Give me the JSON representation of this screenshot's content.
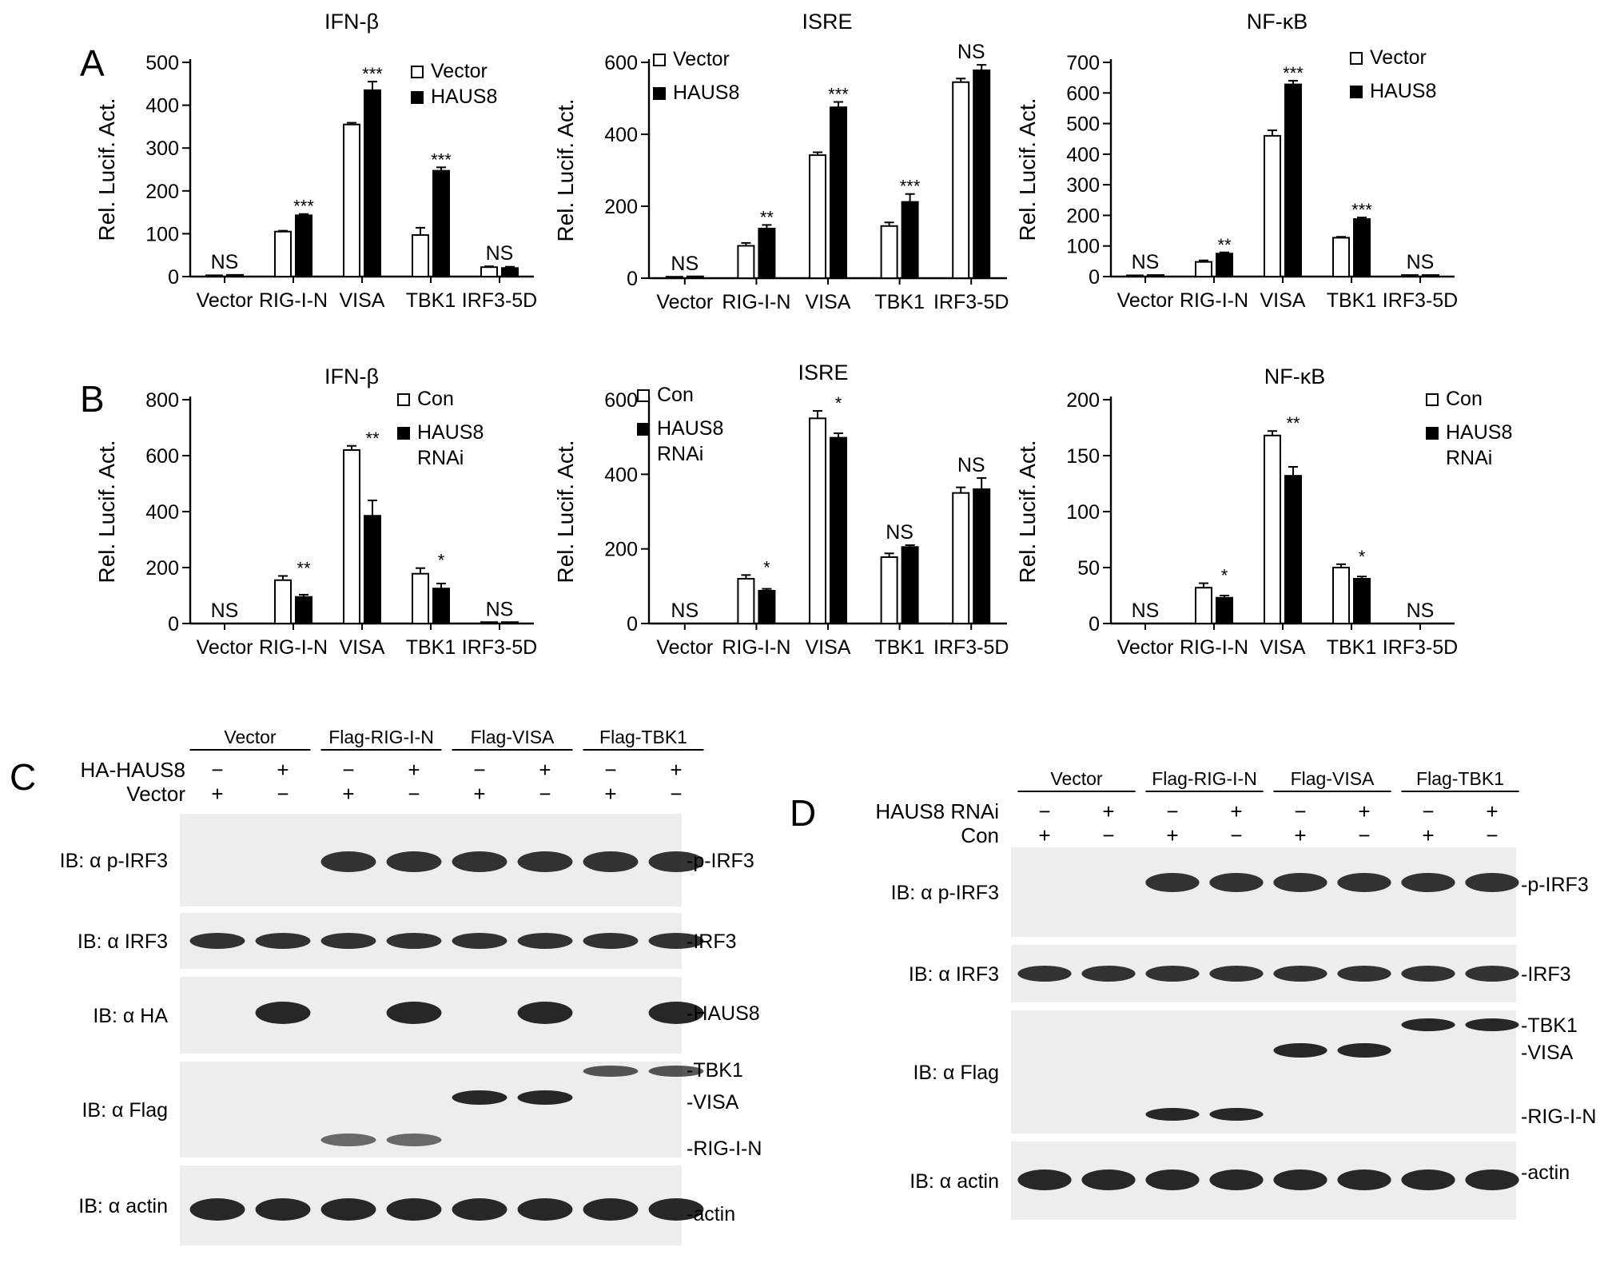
{
  "panels": {
    "A": "A",
    "B": "B",
    "C": "C",
    "D": "D"
  },
  "chart_data": [
    {
      "panel": "A",
      "type": "bar",
      "title": "IFN-β",
      "xlabel": "",
      "ylabel": "Rel. Lucif. Act.",
      "categories": [
        "Vector",
        "RIG-I-N",
        "VISA",
        "TBK1",
        "IRF3-5D"
      ],
      "ylim": [
        0,
        500
      ],
      "yticks": [
        0,
        100,
        200,
        300,
        400,
        500
      ],
      "series": [
        {
          "name": "Vector",
          "fill": "#ffffff",
          "values": [
            3,
            105,
            355,
            97,
            22
          ],
          "errors": [
            0,
            2,
            4,
            17,
            2
          ]
        },
        {
          "name": "HAUS8",
          "fill": "#000000",
          "values": [
            4,
            143,
            435,
            247,
            20
          ],
          "errors": [
            0,
            3,
            20,
            8,
            3
          ]
        }
      ],
      "annotations": [
        "NS",
        "***",
        "***",
        "***",
        "NS"
      ],
      "legend_position": "top-right"
    },
    {
      "panel": "A",
      "type": "bar",
      "title": "ISRE",
      "xlabel": "",
      "ylabel": "Rel. Lucif. Act.",
      "categories": [
        "Vector",
        "RIG-I-N",
        "VISA",
        "TBK1",
        "IRF3-5D"
      ],
      "ylim": [
        0,
        600
      ],
      "yticks": [
        0,
        200,
        400,
        600
      ],
      "series": [
        {
          "name": "Vector",
          "fill": "#ffffff",
          "values": [
            4,
            90,
            342,
            145,
            545
          ],
          "errors": [
            0,
            8,
            8,
            10,
            10
          ]
        },
        {
          "name": "HAUS8",
          "fill": "#000000",
          "values": [
            5,
            138,
            475,
            212,
            578
          ],
          "errors": [
            0,
            10,
            15,
            22,
            15
          ]
        }
      ],
      "annotations": [
        "NS",
        "**",
        "***",
        "***",
        "NS"
      ],
      "legend_position": "top-left"
    },
    {
      "panel": "A",
      "type": "bar",
      "title": "NF-κB",
      "xlabel": "",
      "ylabel": "Rel. Lucif. Act.",
      "categories": [
        "Vector",
        "RIG-I-N",
        "VISA",
        "TBK1",
        "IRF3-5D"
      ],
      "ylim": [
        0,
        700
      ],
      "yticks": [
        0,
        100,
        200,
        300,
        400,
        500,
        600,
        700
      ],
      "series": [
        {
          "name": "Vector",
          "fill": "#ffffff",
          "values": [
            4,
            48,
            460,
            127,
            5
          ],
          "errors": [
            0,
            5,
            18,
            3,
            0
          ]
        },
        {
          "name": "HAUS8",
          "fill": "#000000",
          "values": [
            5,
            75,
            628,
            188,
            5
          ],
          "errors": [
            0,
            4,
            12,
            5,
            0
          ]
        }
      ],
      "annotations": [
        "NS",
        "**",
        "***",
        "***",
        "NS"
      ],
      "legend_position": "top-right"
    },
    {
      "panel": "B",
      "type": "bar",
      "title": "IFN-β",
      "xlabel": "",
      "ylabel": "Rel. Lucif. Act.",
      "categories": [
        "Vector",
        "RIG-I-N",
        "VISA",
        "TBK1",
        "IRF3-5D"
      ],
      "ylim": [
        0,
        800
      ],
      "yticks": [
        0,
        200,
        400,
        600,
        800
      ],
      "series": [
        {
          "name": "Con",
          "fill": "#ffffff",
          "values": [
            0,
            155,
            620,
            178,
            5
          ],
          "errors": [
            0,
            15,
            15,
            20,
            0
          ]
        },
        {
          "name": "HAUS8\nRNAi",
          "fill": "#000000",
          "values": [
            0,
            95,
            385,
            125,
            5
          ],
          "errors": [
            0,
            8,
            55,
            18,
            0
          ]
        }
      ],
      "annotations": [
        "NS",
        "**",
        "**",
        "*",
        "NS"
      ],
      "legend_position": "top-right"
    },
    {
      "panel": "B",
      "type": "bar",
      "title": "ISRE",
      "xlabel": "",
      "ylabel": "Rel. Lucif. Act.",
      "categories": [
        "Vector",
        "RIG-I-N",
        "VISA",
        "TBK1",
        "IRF3-5D"
      ],
      "ylim": [
        0,
        600
      ],
      "yticks": [
        0,
        200,
        400,
        600
      ],
      "series": [
        {
          "name": "Con",
          "fill": "#ffffff",
          "values": [
            0,
            120,
            550,
            178,
            350
          ],
          "errors": [
            0,
            10,
            20,
            10,
            15
          ]
        },
        {
          "name": "HAUS8\nRNAi",
          "fill": "#000000",
          "values": [
            0,
            88,
            498,
            205,
            360
          ],
          "errors": [
            0,
            5,
            12,
            5,
            30
          ]
        }
      ],
      "annotations": [
        "NS",
        "*",
        "*",
        "NS",
        "NS"
      ],
      "legend_position": "top-left"
    },
    {
      "panel": "B",
      "type": "bar",
      "title": "NF-κB",
      "xlabel": "",
      "ylabel": "Rel. Lucif. Act.",
      "categories": [
        "Vector",
        "RIG-I-N",
        "VISA",
        "TBK1",
        "IRF3-5D"
      ],
      "ylim": [
        0,
        200
      ],
      "yticks": [
        0,
        50,
        100,
        150,
        200
      ],
      "series": [
        {
          "name": "Con",
          "fill": "#ffffff",
          "values": [
            0,
            32,
            168,
            50,
            0
          ],
          "errors": [
            0,
            4,
            4,
            3,
            0
          ]
        },
        {
          "name": "HAUS8\nRNAi",
          "fill": "#000000",
          "values": [
            0,
            23,
            132,
            40,
            0
          ],
          "errors": [
            0,
            2,
            8,
            2,
            0
          ]
        }
      ],
      "annotations": [
        "NS",
        "*",
        "**",
        "*",
        "NS"
      ],
      "legend_position": "top-right"
    }
  ],
  "blots": {
    "C": {
      "groups": [
        "Vector",
        "Flag-RIG-I-N",
        "Flag-VISA",
        "Flag-TBK1"
      ],
      "conditions": [
        {
          "label": "HA-HAUS8",
          "signs": [
            "−",
            "+",
            "−",
            "+",
            "−",
            "+",
            "−",
            "+"
          ]
        },
        {
          "label": "Vector",
          "signs": [
            "+",
            "−",
            "+",
            "−",
            "+",
            "−",
            "+",
            "−"
          ]
        }
      ],
      "rows": [
        {
          "ib": "IB: α p-IRF3",
          "right": [
            "p-IRF3"
          ]
        },
        {
          "ib": "IB: α IRF3",
          "right": [
            "IRF3"
          ]
        },
        {
          "ib": "IB: α HA",
          "right": [
            "HAUS8"
          ]
        },
        {
          "ib": "IB: α Flag",
          "right": [
            "TBK1",
            "VISA",
            "RIG-I-N"
          ]
        },
        {
          "ib": "IB: α actin",
          "right": [
            "actin"
          ]
        }
      ]
    },
    "D": {
      "groups": [
        "Vector",
        "Flag-RIG-I-N",
        "Flag-VISA",
        "Flag-TBK1"
      ],
      "conditions": [
        {
          "label": "HAUS8 RNAi",
          "signs": [
            "−",
            "+",
            "−",
            "+",
            "−",
            "+",
            "−",
            "+"
          ]
        },
        {
          "label": "Con",
          "signs": [
            "+",
            "−",
            "+",
            "−",
            "+",
            "−",
            "+",
            "−"
          ]
        }
      ],
      "rows": [
        {
          "ib": "IB: α p-IRF3",
          "right": [
            "p-IRF3"
          ]
        },
        {
          "ib": "IB: α IRF3",
          "right": [
            "IRF3"
          ]
        },
        {
          "ib": "IB: α Flag",
          "right": [
            "TBK1",
            "VISA",
            "RIG-I-N"
          ]
        },
        {
          "ib": "IB: α actin",
          "right": [
            "actin"
          ]
        }
      ]
    }
  }
}
